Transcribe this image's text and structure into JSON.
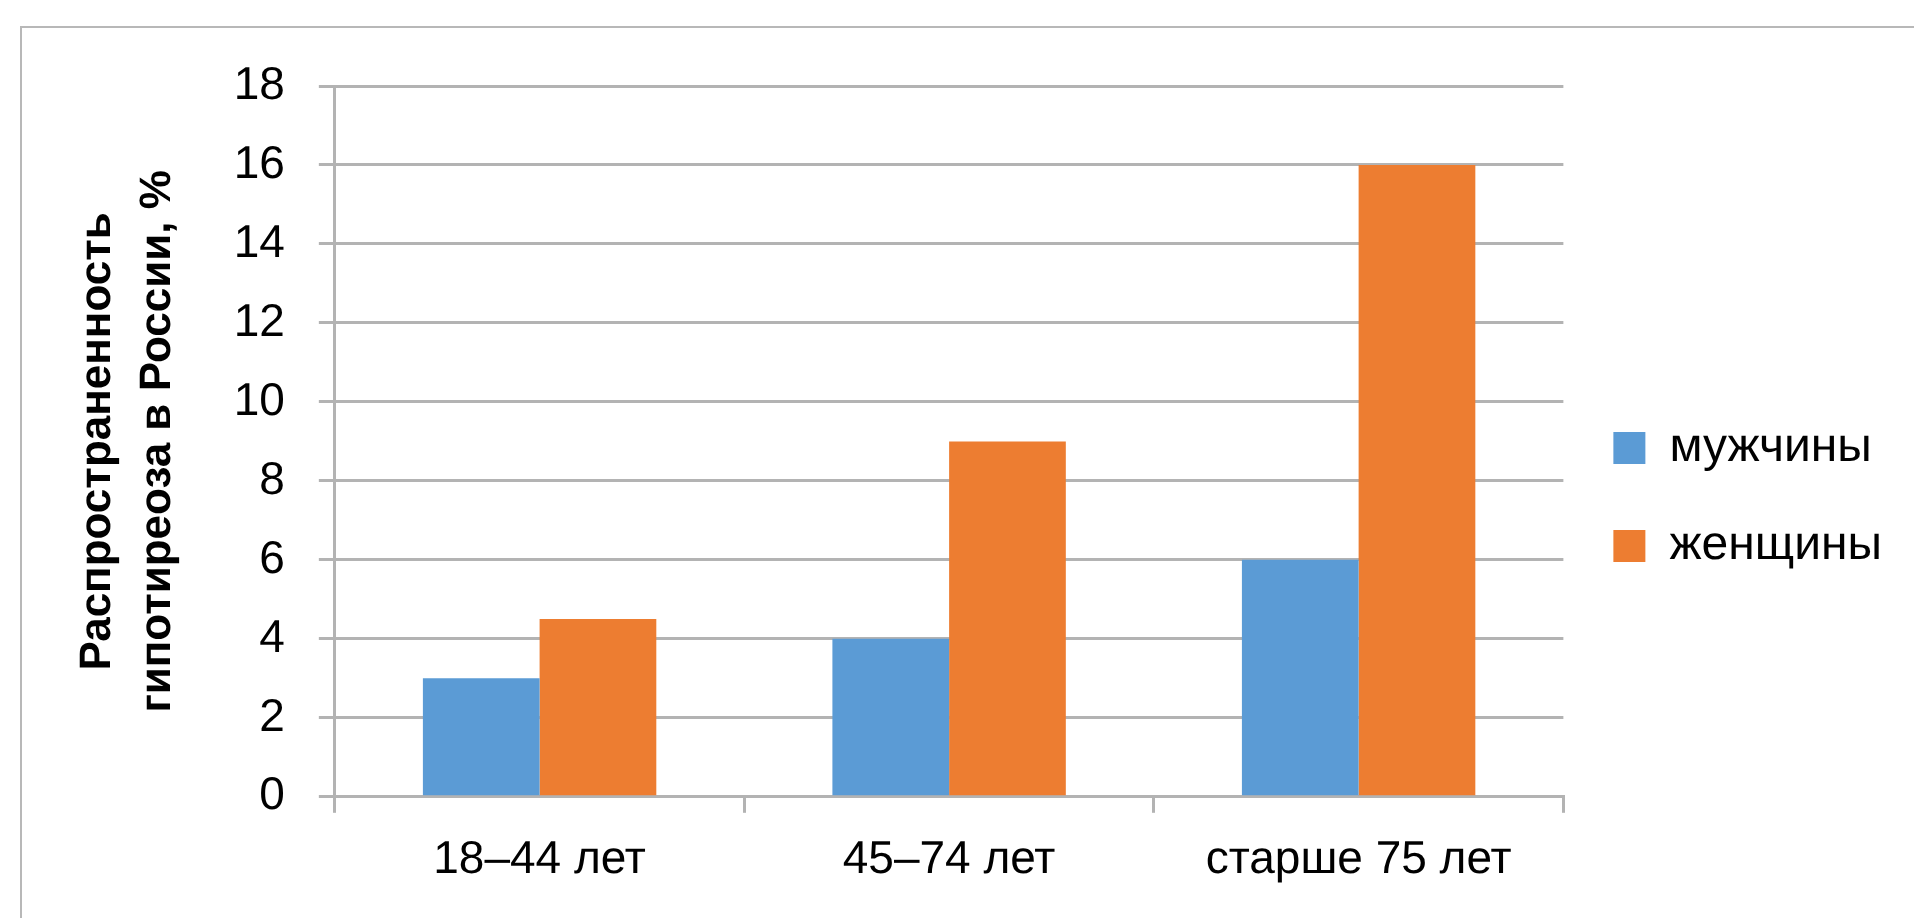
{
  "chart_data": {
    "type": "bar",
    "ylabel": "Распространенность гипотиреоза в России, %",
    "categories": [
      "18–44 лет",
      "45–74 лет",
      "старше 75 лет"
    ],
    "series": [
      {
        "name": "мужчины",
        "color": "#5b9bd5",
        "values": [
          3,
          4,
          6
        ]
      },
      {
        "name": "женщины",
        "color": "#ed7d31",
        "values": [
          4.5,
          9,
          16
        ]
      }
    ],
    "ylim": [
      0,
      18
    ],
    "yticks": [
      0,
      2,
      4,
      6,
      8,
      10,
      12,
      14,
      16,
      18
    ],
    "grid": "y",
    "legend": "right"
  }
}
